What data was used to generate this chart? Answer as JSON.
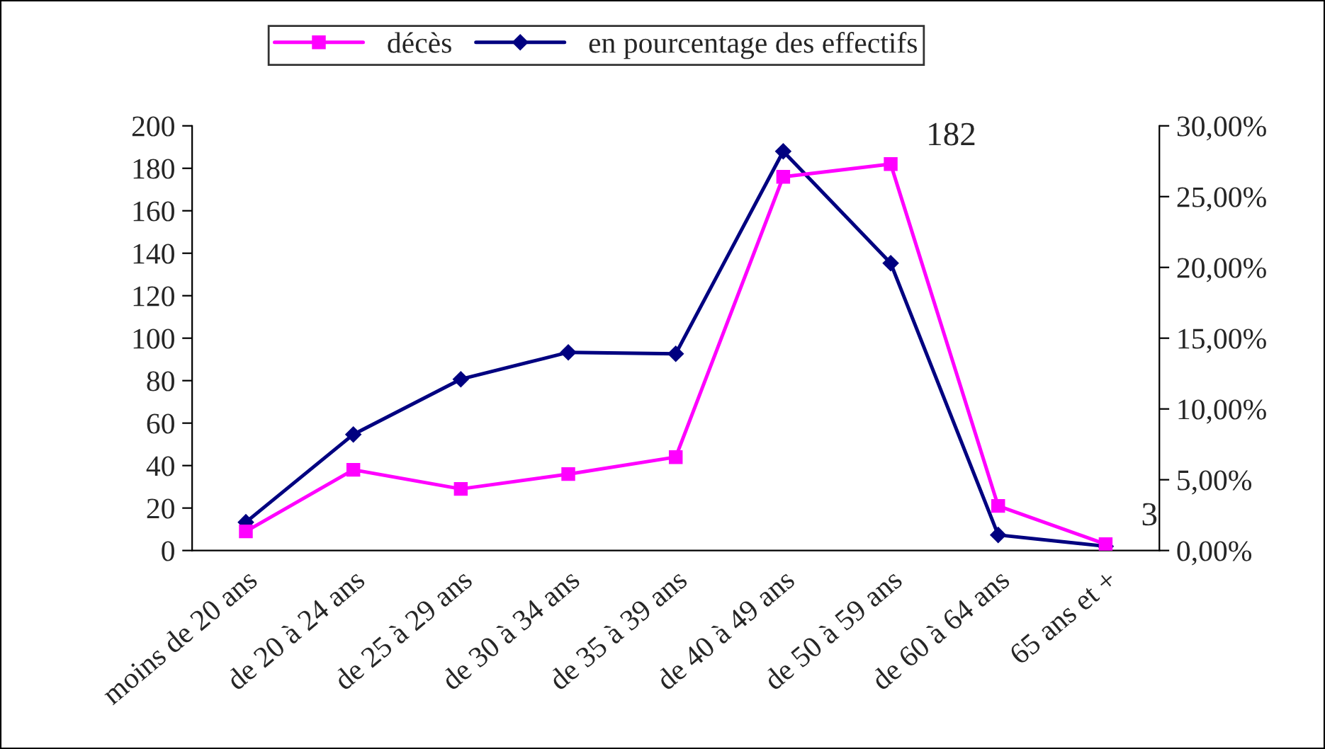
{
  "chart_data": {
    "type": "line",
    "categories": [
      "moins de 20 ans",
      "de 20 à 24 ans",
      "de 25 à 29 ans",
      "de 30 à 34 ans",
      "de 35 à 39 ans",
      "de 40 à 49 ans",
      "de 50 à 59 ans",
      "de 60 à 64 ans",
      "65 ans et +"
    ],
    "series": [
      {
        "name": "décès",
        "color": "#ff00ff",
        "marker": "square",
        "values": [
          9,
          38,
          29,
          36,
          44,
          176,
          182,
          21,
          3
        ]
      },
      {
        "name": "en pourcentage des effectifs",
        "color": "#000080",
        "marker": "diamond",
        "axis": "y2",
        "values": [
          0.02,
          0.082,
          0.121,
          0.14,
          0.139,
          0.282,
          0.203,
          0.011,
          0.003
        ]
      }
    ],
    "ylim": [
      0,
      200
    ],
    "yticks": [
      0,
      20,
      40,
      60,
      80,
      100,
      120,
      140,
      160,
      180,
      200
    ],
    "y2lim": [
      0,
      0.3
    ],
    "y2ticks": [
      {
        "value": 0,
        "label": "0,00%"
      },
      {
        "value": 0.05,
        "label": "5,00%"
      },
      {
        "value": 0.1,
        "label": "10,00%"
      },
      {
        "value": 0.15,
        "label": "15,00%"
      },
      {
        "value": 0.2,
        "label": "20,00%"
      },
      {
        "value": 0.25,
        "label": "25,00%"
      },
      {
        "value": 0.3,
        "label": "30,00%"
      }
    ],
    "annotations": [
      {
        "text": "182",
        "x": "de 50 à 59 ans",
        "y": 182
      },
      {
        "text": "3",
        "x": "65 ans et +",
        "y": 3
      }
    ],
    "legend": "top",
    "grid": false
  }
}
